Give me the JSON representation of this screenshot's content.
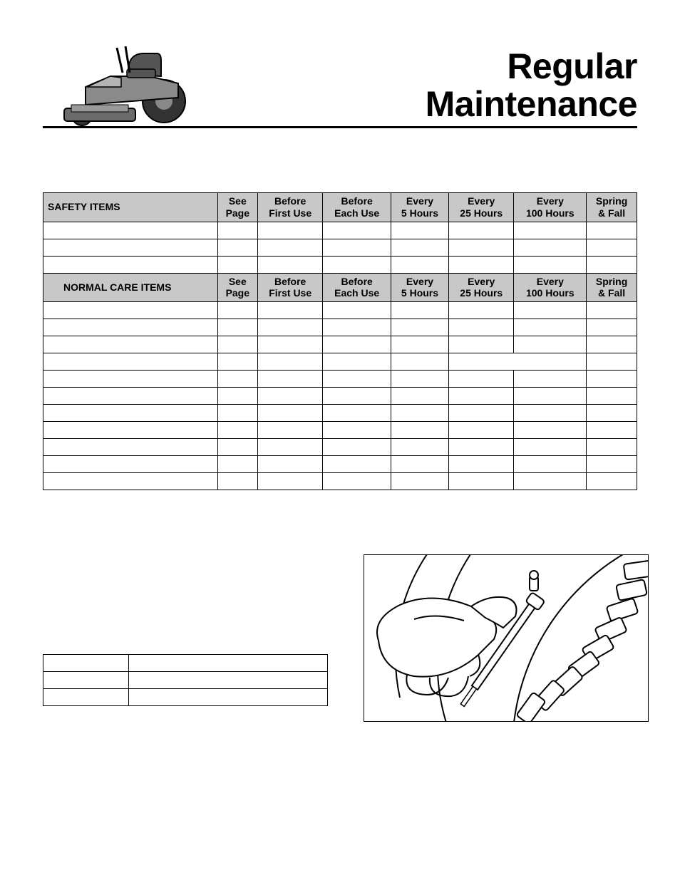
{
  "title_line1": "Regular",
  "title_line2": "Maintenance",
  "columns": [
    "See\nPage",
    "Before\nFirst Use",
    "Before\nEach Use",
    "Every\n5 Hours",
    "Every\n25 Hours",
    "Every\n100 Hours",
    "Spring\n& Fall"
  ],
  "sections": [
    {
      "header": "SAFETY ITEMS",
      "header_indent": false,
      "rows": [
        {
          "cells": [
            "",
            "",
            "",
            "",
            "",
            "",
            ""
          ]
        },
        {
          "cells": [
            "",
            "",
            "",
            "",
            "",
            "",
            ""
          ]
        },
        {
          "cells": [
            "",
            "",
            "",
            "",
            "",
            "",
            ""
          ]
        }
      ]
    },
    {
      "header": "NORMAL CARE ITEMS",
      "header_indent": true,
      "rows": [
        {
          "cells": [
            "",
            "",
            "",
            "",
            "",
            "",
            ""
          ]
        },
        {
          "cells": [
            "",
            "",
            "",
            "",
            "",
            "",
            ""
          ]
        },
        {
          "cells": [
            "",
            "",
            "",
            "",
            "",
            "",
            ""
          ]
        },
        {
          "merge_25_100": true,
          "cells": [
            "",
            "",
            "",
            "",
            "",
            "",
            ""
          ]
        },
        {
          "cells": [
            "",
            "",
            "",
            "",
            "",
            "",
            ""
          ]
        },
        {
          "cells": [
            "",
            "",
            "",
            "",
            "",
            "",
            ""
          ]
        },
        {
          "cells": [
            "",
            "",
            "",
            "",
            "",
            "",
            ""
          ]
        },
        {
          "cells": [
            "",
            "",
            "",
            "",
            "",
            "",
            ""
          ]
        },
        {
          "cells": [
            "",
            "",
            "",
            "",
            "",
            "",
            ""
          ]
        },
        {
          "cells": [
            "",
            "",
            "",
            "",
            "",
            "",
            ""
          ]
        },
        {
          "cells": [
            "",
            "",
            "",
            "",
            "",
            "",
            ""
          ]
        }
      ]
    }
  ],
  "small_table_rows": [
    [
      "",
      ""
    ],
    [
      "",
      ""
    ],
    [
      "",
      ""
    ]
  ],
  "colors": {
    "header_bg": "#c8c8c8",
    "border": "#000000",
    "text": "#000000",
    "bg": "#ffffff"
  },
  "fonts": {
    "title_family": "Arial Black",
    "title_size_pt": 40,
    "table_header_family": "Arial Narrow",
    "table_header_size_pt": 11
  }
}
